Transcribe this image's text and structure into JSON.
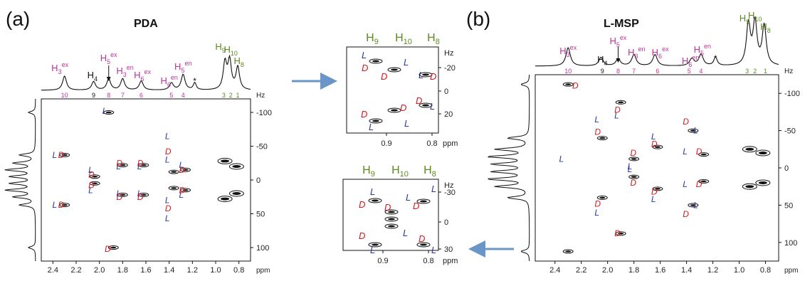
{
  "panels": {
    "a": {
      "letter": "(a)",
      "title": "PDA"
    },
    "b": {
      "letter": "(b)",
      "title": "L-MSP"
    }
  },
  "colors": {
    "magenta": "#c0329c",
    "olive": "#5c8a1e",
    "black": "#111111",
    "red": "#d7191c",
    "blue": "#2b3aa6",
    "arrow": "#6a95c7"
  },
  "unit_ppm": "ppm",
  "unit_hz": "Hz",
  "main_axes": {
    "x_ticks": [
      "2.4",
      "2.2",
      "2.0",
      "1.8",
      "1.6",
      "1.4",
      "1.2",
      "1.0",
      "0.8"
    ],
    "y_ticks_a": [
      "-100",
      "-50",
      "0",
      "50",
      "100"
    ],
    "y_ticks_b": [
      "-100",
      "-50",
      "0",
      "50",
      "100"
    ]
  },
  "zoom_axes": {
    "x_ticks": [
      "0.9",
      "0.8"
    ],
    "y_ticks_top": [
      "-20",
      "0",
      "20"
    ],
    "y_ticks_bottom": [
      "-30",
      "0",
      "30"
    ]
  },
  "peak_labels": [
    {
      "base": "H",
      "sub": "3",
      "sup": "ex",
      "color": "magenta"
    },
    {
      "base": "H",
      "sub": "4",
      "sup": "",
      "color": "black"
    },
    {
      "base": "H",
      "sub": "5",
      "sup": "ex",
      "color": "magenta"
    },
    {
      "base": "H",
      "sub": "3",
      "sup": "en",
      "color": "magenta"
    },
    {
      "base": "H",
      "sub": "6",
      "sup": "ex",
      "color": "magenta"
    },
    {
      "base": "H",
      "sub": "6",
      "sup": "en",
      "color": "magenta"
    },
    {
      "base": "H",
      "sub": "5",
      "sup": "en",
      "color": "magenta"
    },
    {
      "base": "H",
      "sub": "9",
      "sup": "",
      "color": "olive"
    },
    {
      "base": "H",
      "sub": "10",
      "sup": "",
      "color": "olive"
    },
    {
      "base": "H",
      "sub": "8",
      "sup": "",
      "color": "olive"
    }
  ],
  "site_numbers": [
    "10",
    "9",
    "8",
    "7",
    "6",
    "5",
    "4",
    "3",
    "2",
    "1"
  ],
  "star": "*",
  "letters": {
    "L": "L",
    "D": "D"
  },
  "zoom_labels": [
    "H9",
    "H10",
    "H8"
  ],
  "chart_data": [
    {
      "type": "scatter",
      "title": "PDA",
      "xlabel": "ppm",
      "ylabel": "Hz",
      "xlim": [
        2.5,
        0.7
      ],
      "ylim": [
        -120,
        120
      ],
      "series": [
        {
          "name": "L",
          "x": [
            2.35,
            2.35,
            2.04,
            2.04,
            1.92,
            1.8,
            1.8,
            1.62,
            1.62,
            1.38,
            1.38,
            1.38,
            1.38,
            1.26,
            1.26
          ],
          "y": [
            -37,
            37,
            -15,
            15,
            -102,
            -20,
            20,
            -20,
            20,
            -65,
            -30,
            30,
            57,
            -22,
            22
          ]
        },
        {
          "name": "D",
          "x": [
            2.3,
            2.3,
            2.04,
            2.04,
            1.9,
            1.8,
            1.8,
            1.62,
            1.62,
            1.38,
            1.38,
            1.26,
            1.26
          ],
          "y": [
            -37,
            37,
            -8,
            8,
            102,
            -25,
            25,
            -25,
            25,
            -42,
            42,
            -15,
            15
          ]
        },
        {
          "name": "peaks",
          "x": [
            2.3,
            2.3,
            2.04,
            2.04,
            1.92,
            1.88,
            1.8,
            1.8,
            1.62,
            1.62,
            1.36,
            1.36,
            1.26,
            1.26,
            0.92,
            0.92,
            0.82,
            0.82
          ],
          "y": [
            -37,
            37,
            -5,
            5,
            -100,
            100,
            -22,
            22,
            -22,
            22,
            -12,
            12,
            -15,
            15,
            -28,
            28,
            -20,
            20
          ]
        }
      ]
    },
    {
      "type": "scatter",
      "title": "L-MSP",
      "xlabel": "ppm",
      "ylabel": "Hz",
      "xlim": [
        2.55,
        0.7
      ],
      "ylim": [
        -125,
        125
      ],
      "series": [
        {
          "name": "L",
          "x": [
            2.32,
            2.05,
            2.05,
            1.9,
            1.8,
            1.8,
            1.62,
            1.62,
            1.38,
            1.38,
            1.3,
            1.3
          ],
          "y": [
            -12,
            -65,
            60,
            -70,
            2,
            -2,
            -42,
            42,
            -22,
            22,
            -50,
            50
          ]
        },
        {
          "name": "D",
          "x": [
            2.22,
            2.05,
            2.05,
            1.9,
            1.9,
            1.78,
            1.78,
            1.62,
            1.62,
            1.38,
            1.38,
            1.28,
            1.28
          ],
          "y": [
            -110,
            -48,
            48,
            -78,
            88,
            -20,
            20,
            -32,
            32,
            -62,
            62,
            -22,
            22
          ]
        },
        {
          "name": "peaks",
          "x": [
            2.3,
            2.3,
            2.04,
            2.04,
            1.9,
            1.9,
            1.8,
            1.8,
            1.62,
            1.62,
            1.35,
            1.35,
            1.27,
            1.27,
            0.92,
            0.92,
            0.82,
            0.82
          ],
          "y": [
            -112,
            112,
            -40,
            40,
            -88,
            88,
            -12,
            12,
            -28,
            28,
            -50,
            50,
            -18,
            18,
            -25,
            25,
            -20,
            20
          ]
        }
      ]
    }
  ]
}
